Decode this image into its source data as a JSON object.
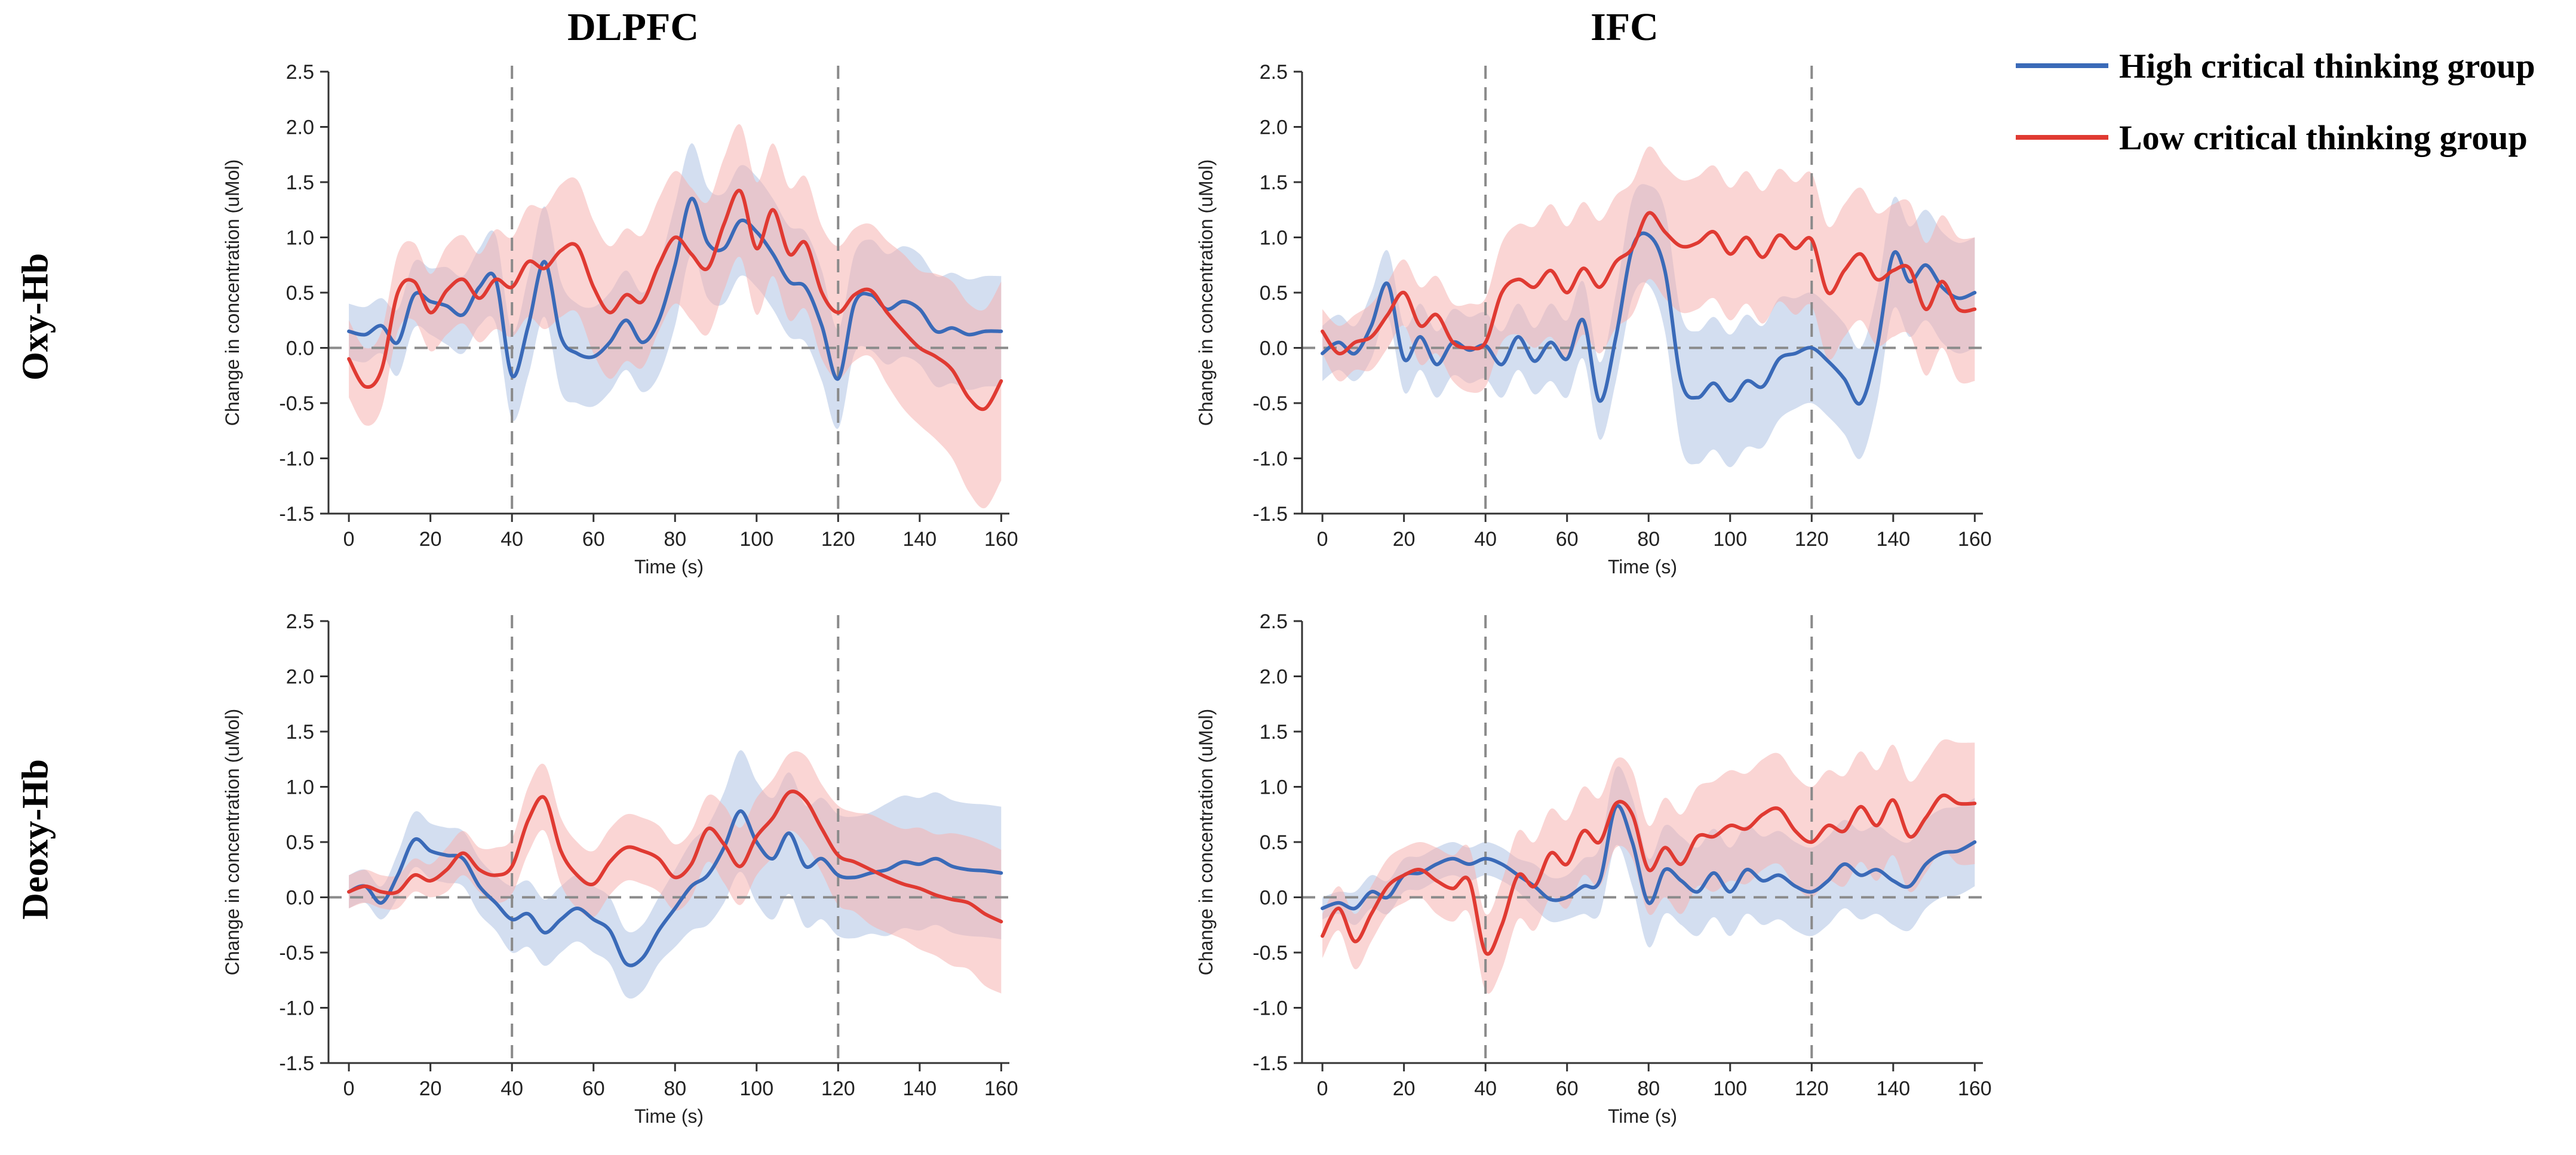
{
  "figure": {
    "column_titles": [
      "DLPFC",
      "IFC"
    ],
    "row_labels": [
      "Oxy-Hb",
      "Deoxy-Hb"
    ]
  },
  "legend": {
    "items": [
      {
        "label": "High critical thinking group",
        "color": "#3a6ab8"
      },
      {
        "label": "Low critical thinking group",
        "color": "#e03a32"
      }
    ]
  },
  "colors": {
    "high_line": "#3a6ab8",
    "high_band": "#aec2e4",
    "low_line": "#e03a32",
    "low_band": "#f6b3b0",
    "axis": "#333333",
    "reference": "#8a8a8a"
  },
  "chart_data": [
    {
      "type": "line",
      "panel": "oxy-dlpfc",
      "title": "DLPFC",
      "xlabel": "Time (s)",
      "ylabel": "Change in concentration (uMol)",
      "xlim": [
        -5,
        162
      ],
      "ylim": [
        -1.5,
        2.5
      ],
      "xticks": [
        0,
        20,
        40,
        60,
        80,
        100,
        120,
        140,
        160
      ],
      "yticks": [
        -1.5,
        -1.0,
        -0.5,
        0.0,
        0.5,
        1.0,
        1.5,
        2.0,
        2.5
      ],
      "tick_labels_x": [
        "0",
        "20",
        "40",
        "60",
        "80",
        "100",
        "120",
        "140",
        "160"
      ],
      "tick_labels_y": [
        "-1.5",
        "-1.0",
        "-0.5",
        "0.0",
        "0.5",
        "1.0",
        "1.5",
        "2.0",
        "2.5"
      ],
      "vlines": [
        40,
        120
      ],
      "hline": 0,
      "x": [
        0,
        4,
        8,
        12,
        16,
        20,
        24,
        28,
        32,
        36,
        40,
        44,
        48,
        52,
        56,
        60,
        64,
        68,
        72,
        76,
        80,
        84,
        88,
        92,
        96,
        100,
        104,
        108,
        112,
        116,
        120,
        124,
        128,
        132,
        136,
        140,
        144,
        148,
        152,
        156,
        160
      ],
      "series": [
        {
          "name": "High critical thinking group",
          "values": [
            0.15,
            0.12,
            0.2,
            0.05,
            0.48,
            0.42,
            0.38,
            0.3,
            0.55,
            0.62,
            -0.25,
            0.2,
            0.78,
            0.1,
            -0.05,
            -0.08,
            0.05,
            0.25,
            0.05,
            0.25,
            0.75,
            1.35,
            0.95,
            0.9,
            1.15,
            1.05,
            0.85,
            0.6,
            0.55,
            0.2,
            -0.28,
            0.4,
            0.48,
            0.35,
            0.42,
            0.35,
            0.15,
            0.18,
            0.12,
            0.15,
            0.15
          ],
          "band": [
            0.25,
            0.25,
            0.25,
            0.3,
            0.3,
            0.3,
            0.35,
            0.35,
            0.35,
            0.4,
            0.4,
            0.45,
            0.5,
            0.5,
            0.45,
            0.45,
            0.45,
            0.45,
            0.45,
            0.5,
            0.55,
            0.5,
            0.5,
            0.5,
            0.5,
            0.5,
            0.5,
            0.5,
            0.5,
            0.5,
            0.45,
            0.45,
            0.5,
            0.5,
            0.5,
            0.5,
            0.5,
            0.5,
            0.5,
            0.5,
            0.5
          ]
        },
        {
          "name": "Low critical thinking group",
          "values": [
            -0.1,
            -0.35,
            -0.2,
            0.5,
            0.6,
            0.32,
            0.52,
            0.62,
            0.45,
            0.62,
            0.55,
            0.78,
            0.72,
            0.88,
            0.92,
            0.55,
            0.32,
            0.48,
            0.42,
            0.75,
            1.0,
            0.85,
            0.72,
            1.12,
            1.42,
            0.9,
            1.25,
            0.85,
            0.95,
            0.5,
            0.32,
            0.48,
            0.52,
            0.32,
            0.15,
            0.0,
            -0.08,
            -0.2,
            -0.45,
            -0.55,
            -0.3
          ],
          "band": [
            0.35,
            0.35,
            0.35,
            0.35,
            0.35,
            0.35,
            0.4,
            0.4,
            0.4,
            0.45,
            0.45,
            0.5,
            0.55,
            0.6,
            0.6,
            0.6,
            0.6,
            0.6,
            0.6,
            0.6,
            0.6,
            0.6,
            0.6,
            0.6,
            0.6,
            0.6,
            0.6,
            0.6,
            0.6,
            0.6,
            0.6,
            0.6,
            0.6,
            0.65,
            0.7,
            0.7,
            0.75,
            0.8,
            0.85,
            0.9,
            0.9
          ]
        }
      ]
    },
    {
      "type": "line",
      "panel": "oxy-ifc",
      "title": "IFC",
      "xlabel": "Time (s)",
      "ylabel": "Change in concentration (uMol)",
      "xlim": [
        -5,
        162
      ],
      "ylim": [
        -1.5,
        2.5
      ],
      "xticks": [
        0,
        20,
        40,
        60,
        80,
        100,
        120,
        140,
        160
      ],
      "yticks": [
        -1.5,
        -1.0,
        -0.5,
        0.0,
        0.5,
        1.0,
        1.5,
        2.0,
        2.5
      ],
      "tick_labels_x": [
        "0",
        "20",
        "40",
        "60",
        "80",
        "100",
        "120",
        "140",
        "160"
      ],
      "tick_labels_y": [
        "-1.5",
        "-1.0",
        "-0.5",
        "0.0",
        "0.5",
        "1.0",
        "1.5",
        "2.0",
        "2.5"
      ],
      "vlines": [
        40,
        120
      ],
      "hline": 0,
      "x": [
        0,
        4,
        8,
        12,
        16,
        20,
        24,
        28,
        32,
        36,
        40,
        44,
        48,
        52,
        56,
        60,
        64,
        68,
        72,
        76,
        80,
        84,
        88,
        92,
        96,
        100,
        104,
        108,
        112,
        116,
        120,
        124,
        128,
        132,
        136,
        140,
        144,
        148,
        152,
        156,
        160
      ],
      "series": [
        {
          "name": "High critical thinking group",
          "values": [
            -0.05,
            0.05,
            -0.05,
            0.2,
            0.58,
            -0.1,
            0.1,
            -0.15,
            0.05,
            -0.02,
            0.02,
            -0.15,
            0.1,
            -0.12,
            0.05,
            -0.1,
            0.25,
            -0.48,
            0.1,
            0.9,
            1.02,
            0.7,
            -0.3,
            -0.45,
            -0.32,
            -0.48,
            -0.3,
            -0.35,
            -0.1,
            -0.05,
            0.0,
            -0.12,
            -0.28,
            -0.5,
            0.0,
            0.85,
            0.6,
            0.75,
            0.55,
            0.45,
            0.5
          ],
          "band": [
            0.25,
            0.25,
            0.25,
            0.3,
            0.3,
            0.3,
            0.3,
            0.3,
            0.3,
            0.3,
            0.3,
            0.3,
            0.3,
            0.3,
            0.35,
            0.35,
            0.35,
            0.35,
            0.4,
            0.45,
            0.45,
            0.55,
            0.6,
            0.6,
            0.6,
            0.6,
            0.6,
            0.55,
            0.55,
            0.5,
            0.5,
            0.5,
            0.5,
            0.5,
            0.5,
            0.5,
            0.5,
            0.5,
            0.5,
            0.5,
            0.5
          ]
        },
        {
          "name": "Low critical thinking group",
          "values": [
            0.15,
            -0.05,
            0.05,
            0.1,
            0.3,
            0.5,
            0.2,
            0.3,
            0.05,
            0.0,
            0.05,
            0.5,
            0.62,
            0.55,
            0.7,
            0.5,
            0.72,
            0.55,
            0.78,
            0.9,
            1.22,
            1.05,
            0.92,
            0.95,
            1.05,
            0.85,
            1.0,
            0.82,
            1.02,
            0.9,
            0.98,
            0.5,
            0.7,
            0.85,
            0.62,
            0.7,
            0.72,
            0.35,
            0.6,
            0.35,
            0.35
          ],
          "band": [
            0.2,
            0.25,
            0.25,
            0.3,
            0.3,
            0.3,
            0.35,
            0.35,
            0.35,
            0.4,
            0.4,
            0.45,
            0.5,
            0.55,
            0.6,
            0.6,
            0.6,
            0.6,
            0.6,
            0.6,
            0.6,
            0.6,
            0.6,
            0.6,
            0.6,
            0.6,
            0.6,
            0.6,
            0.6,
            0.6,
            0.6,
            0.6,
            0.6,
            0.6,
            0.6,
            0.6,
            0.6,
            0.6,
            0.6,
            0.65,
            0.65
          ]
        }
      ]
    },
    {
      "type": "line",
      "panel": "deoxy-dlpfc",
      "title": "DLPFC",
      "xlabel": "Time (s)",
      "ylabel": "Change in concentration (uMol)",
      "xlim": [
        -5,
        162
      ],
      "ylim": [
        -1.5,
        2.5
      ],
      "xticks": [
        0,
        20,
        40,
        60,
        80,
        100,
        120,
        140,
        160
      ],
      "yticks": [
        -1.5,
        -1.0,
        -0.5,
        0.0,
        0.5,
        1.0,
        1.5,
        2.0,
        2.5
      ],
      "tick_labels_x": [
        "0",
        "20",
        "40",
        "60",
        "80",
        "100",
        "120",
        "140",
        "160"
      ],
      "tick_labels_y": [
        "-1.5",
        "-1.0",
        "-0.5",
        "0.0",
        "0.5",
        "1.0",
        "1.5",
        "2.0",
        "2.5"
      ],
      "vlines": [
        40,
        120
      ],
      "hline": 0,
      "x": [
        0,
        4,
        8,
        12,
        16,
        20,
        24,
        28,
        32,
        36,
        40,
        44,
        48,
        52,
        56,
        60,
        64,
        68,
        72,
        76,
        80,
        84,
        88,
        92,
        96,
        100,
        104,
        108,
        112,
        116,
        120,
        124,
        128,
        132,
        136,
        140,
        144,
        148,
        152,
        156,
        160
      ],
      "series": [
        {
          "name": "High critical thinking group",
          "values": [
            0.05,
            0.1,
            -0.05,
            0.2,
            0.52,
            0.42,
            0.38,
            0.35,
            0.1,
            -0.05,
            -0.2,
            -0.15,
            -0.32,
            -0.2,
            -0.1,
            -0.2,
            -0.3,
            -0.6,
            -0.55,
            -0.3,
            -0.1,
            0.1,
            0.2,
            0.45,
            0.78,
            0.5,
            0.35,
            0.58,
            0.28,
            0.35,
            0.2,
            0.18,
            0.22,
            0.25,
            0.32,
            0.3,
            0.35,
            0.28,
            0.25,
            0.24,
            0.22
          ],
          "band": [
            0.15,
            0.15,
            0.15,
            0.2,
            0.25,
            0.25,
            0.25,
            0.25,
            0.25,
            0.25,
            0.3,
            0.3,
            0.3,
            0.3,
            0.3,
            0.3,
            0.3,
            0.3,
            0.3,
            0.3,
            0.35,
            0.4,
            0.45,
            0.5,
            0.55,
            0.55,
            0.55,
            0.55,
            0.55,
            0.55,
            0.55,
            0.55,
            0.55,
            0.6,
            0.6,
            0.6,
            0.6,
            0.6,
            0.6,
            0.6,
            0.6
          ]
        },
        {
          "name": "Low critical thinking group",
          "values": [
            0.05,
            0.1,
            0.05,
            0.05,
            0.2,
            0.15,
            0.25,
            0.4,
            0.25,
            0.2,
            0.28,
            0.7,
            0.9,
            0.42,
            0.2,
            0.12,
            0.32,
            0.45,
            0.42,
            0.35,
            0.18,
            0.3,
            0.62,
            0.48,
            0.28,
            0.55,
            0.72,
            0.95,
            0.88,
            0.62,
            0.38,
            0.32,
            0.25,
            0.18,
            0.12,
            0.08,
            0.02,
            -0.02,
            -0.05,
            -0.15,
            -0.22
          ],
          "band": [
            0.15,
            0.15,
            0.15,
            0.15,
            0.15,
            0.15,
            0.2,
            0.2,
            0.2,
            0.25,
            0.25,
            0.3,
            0.3,
            0.3,
            0.3,
            0.3,
            0.3,
            0.3,
            0.3,
            0.3,
            0.3,
            0.3,
            0.3,
            0.35,
            0.35,
            0.35,
            0.35,
            0.35,
            0.4,
            0.4,
            0.45,
            0.45,
            0.5,
            0.5,
            0.5,
            0.55,
            0.55,
            0.6,
            0.6,
            0.65,
            0.65
          ]
        }
      ]
    },
    {
      "type": "line",
      "panel": "deoxy-ifc",
      "title": "IFC",
      "xlabel": "Time (s)",
      "ylabel": "Change in concentration (uMol)",
      "xlim": [
        -5,
        162
      ],
      "ylim": [
        -1.5,
        2.5
      ],
      "xticks": [
        0,
        20,
        40,
        60,
        80,
        100,
        120,
        140,
        160
      ],
      "yticks": [
        -1.5,
        -1.0,
        -0.5,
        0.0,
        0.5,
        1.0,
        1.5,
        2.0,
        2.5
      ],
      "tick_labels_x": [
        "0",
        "20",
        "40",
        "60",
        "80",
        "100",
        "120",
        "140",
        "160"
      ],
      "tick_labels_y": [
        "-1.5",
        "-1.0",
        "-0.5",
        "0.0",
        "0.5",
        "1.0",
        "1.5",
        "2.0",
        "2.5"
      ],
      "vlines": [
        40,
        120
      ],
      "hline": 0,
      "x": [
        0,
        4,
        8,
        12,
        16,
        20,
        24,
        28,
        32,
        36,
        40,
        44,
        48,
        52,
        56,
        60,
        64,
        68,
        72,
        76,
        80,
        84,
        88,
        92,
        96,
        100,
        104,
        108,
        112,
        116,
        120,
        124,
        128,
        132,
        136,
        140,
        144,
        148,
        152,
        156,
        160
      ],
      "series": [
        {
          "name": "High critical thinking group",
          "values": [
            -0.1,
            -0.05,
            -0.1,
            0.05,
            0.0,
            0.2,
            0.22,
            0.3,
            0.35,
            0.3,
            0.35,
            0.3,
            0.2,
            0.1,
            -0.02,
            0.0,
            0.1,
            0.15,
            0.82,
            0.5,
            -0.05,
            0.25,
            0.15,
            0.05,
            0.22,
            0.05,
            0.25,
            0.15,
            0.2,
            0.1,
            0.05,
            0.15,
            0.3,
            0.2,
            0.25,
            0.15,
            0.1,
            0.3,
            0.4,
            0.42,
            0.5
          ],
          "band": [
            0.1,
            0.1,
            0.15,
            0.15,
            0.15,
            0.15,
            0.15,
            0.15,
            0.15,
            0.15,
            0.15,
            0.15,
            0.15,
            0.2,
            0.2,
            0.2,
            0.25,
            0.3,
            0.35,
            0.4,
            0.4,
            0.4,
            0.4,
            0.4,
            0.4,
            0.4,
            0.4,
            0.4,
            0.4,
            0.4,
            0.4,
            0.4,
            0.4,
            0.4,
            0.4,
            0.4,
            0.4,
            0.4,
            0.4,
            0.4,
            0.4
          ]
        },
        {
          "name": "Low critical thinking group",
          "values": [
            -0.35,
            -0.1,
            -0.4,
            -0.15,
            0.1,
            0.2,
            0.25,
            0.15,
            0.08,
            0.15,
            -0.5,
            -0.25,
            0.2,
            0.1,
            0.4,
            0.3,
            0.6,
            0.5,
            0.85,
            0.75,
            0.25,
            0.45,
            0.3,
            0.55,
            0.55,
            0.65,
            0.62,
            0.75,
            0.8,
            0.6,
            0.5,
            0.65,
            0.6,
            0.82,
            0.65,
            0.88,
            0.55,
            0.72,
            0.92,
            0.85,
            0.85
          ],
          "band": [
            0.2,
            0.2,
            0.25,
            0.25,
            0.25,
            0.25,
            0.25,
            0.3,
            0.3,
            0.3,
            0.35,
            0.4,
            0.4,
            0.4,
            0.4,
            0.4,
            0.4,
            0.4,
            0.4,
            0.4,
            0.4,
            0.45,
            0.45,
            0.45,
            0.5,
            0.5,
            0.5,
            0.5,
            0.5,
            0.5,
            0.5,
            0.5,
            0.5,
            0.5,
            0.5,
            0.5,
            0.5,
            0.5,
            0.5,
            0.55,
            0.55
          ]
        }
      ]
    }
  ]
}
